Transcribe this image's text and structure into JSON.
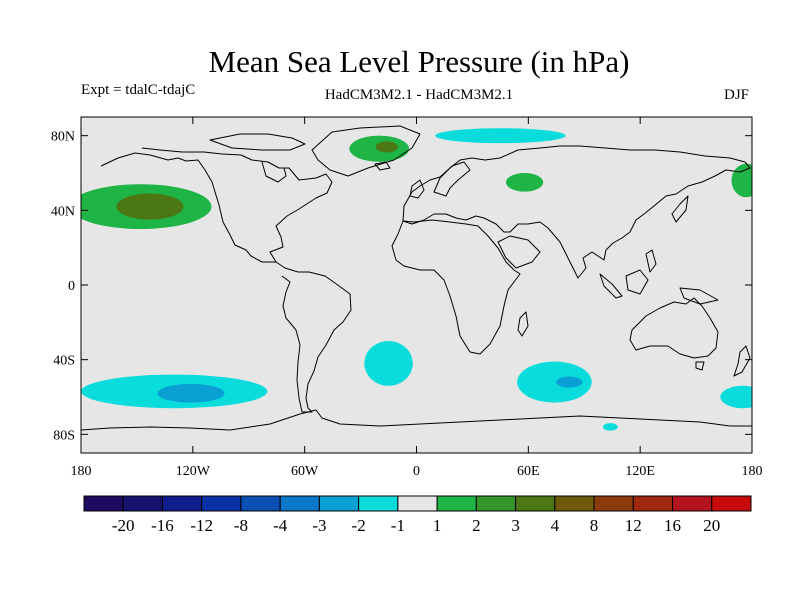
{
  "title": "Mean Sea Level Pressure (in hPa)",
  "experiment": "Expt = tdalC-tdajC",
  "models": "HadCM3M2.1 - HadCM3M2.1",
  "season": "DJF",
  "map": {
    "lon_range": [
      -180,
      180
    ],
    "lat_range": [
      -90,
      90
    ],
    "lat_ticks": [
      {
        "lat": 80,
        "label": "80N"
      },
      {
        "lat": 40,
        "label": "40N"
      },
      {
        "lat": 0,
        "label": "0"
      },
      {
        "lat": -40,
        "label": "40S"
      },
      {
        "lat": -80,
        "label": "80S"
      }
    ],
    "lon_ticks": [
      {
        "lon": -180,
        "label": "180"
      },
      {
        "lon": -120,
        "label": "120W"
      },
      {
        "lon": -60,
        "label": "60W"
      },
      {
        "lon": 0,
        "label": "0"
      },
      {
        "lon": 60,
        "label": "60E"
      },
      {
        "lon": 120,
        "label": "120E"
      },
      {
        "lon": 180,
        "label": "180"
      }
    ],
    "background_color": "#e6e6e6"
  },
  "colorbar": {
    "colors": [
      "#1e0a5e",
      "#16126e",
      "#0f1e8c",
      "#0a32a6",
      "#0a50b4",
      "#0a78c8",
      "#0aa0d4",
      "#0adcdc",
      "#e6e6e6",
      "#1eb446",
      "#329628",
      "#4b7814",
      "#6e5a0a",
      "#8c3c0a",
      "#a0280f",
      "#b4141e",
      "#c80a0a"
    ],
    "labels": [
      "-20",
      "-16",
      "-12",
      "-8",
      "-4",
      "-3",
      "-2",
      "-1",
      "1",
      "2",
      "3",
      "4",
      "8",
      "12",
      "16",
      "20"
    ]
  },
  "anomalies": [
    {
      "name": "north-pacific-positive",
      "lon": -148,
      "lat": 42,
      "rx": 38,
      "ry": 12,
      "level": 2,
      "color": "#1eb446"
    },
    {
      "name": "north-pacific-positive-core",
      "lon": -143,
      "lat": 42,
      "rx": 18,
      "ry": 7,
      "level": 3,
      "color": "#4b7814"
    },
    {
      "name": "greenland-positive",
      "lon": -20,
      "lat": 73,
      "rx": 16,
      "ry": 7,
      "level": 2,
      "color": "#1eb446"
    },
    {
      "name": "greenland-positive-core",
      "lon": -16,
      "lat": 74,
      "rx": 6,
      "ry": 3,
      "level": 3,
      "color": "#4b7814"
    },
    {
      "name": "siberia-positive",
      "lon": 58,
      "lat": 55,
      "rx": 10,
      "ry": 5,
      "level": 2,
      "color": "#1eb446"
    },
    {
      "name": "east-siberia-positive",
      "lon": 177,
      "lat": 56,
      "rx": 8,
      "ry": 9,
      "level": 2,
      "color": "#1eb446"
    },
    {
      "name": "arctic-negative",
      "lon": 45,
      "lat": 80,
      "rx": 35,
      "ry": 4,
      "level": -1,
      "color": "#0adcdc"
    },
    {
      "name": "south-atlantic-negative",
      "lon": -15,
      "lat": -42,
      "rx": 13,
      "ry": 12,
      "level": -1,
      "color": "#0adcdc"
    },
    {
      "name": "south-pacific-negative",
      "lon": -130,
      "lat": -57,
      "rx": 50,
      "ry": 9,
      "level": -1,
      "color": "#0adcdc"
    },
    {
      "name": "south-pacific-negative-core",
      "lon": -121,
      "lat": -58,
      "rx": 18,
      "ry": 5,
      "level": -2,
      "color": "#0aa0d4"
    },
    {
      "name": "south-indian-negative",
      "lon": 74,
      "lat": -52,
      "rx": 20,
      "ry": 11,
      "level": -1,
      "color": "#0adcdc"
    },
    {
      "name": "south-indian-negative-core",
      "lon": 82,
      "lat": -52,
      "rx": 7,
      "ry": 3,
      "level": -2,
      "color": "#0aa0d4"
    },
    {
      "name": "australia-south-negative",
      "lon": 175,
      "lat": -60,
      "rx": 12,
      "ry": 6,
      "level": -1,
      "color": "#0adcdc"
    },
    {
      "name": "antarctic-negative",
      "lon": 104,
      "lat": -76,
      "rx": 4,
      "ry": 2,
      "level": -1,
      "color": "#0adcdc"
    }
  ]
}
